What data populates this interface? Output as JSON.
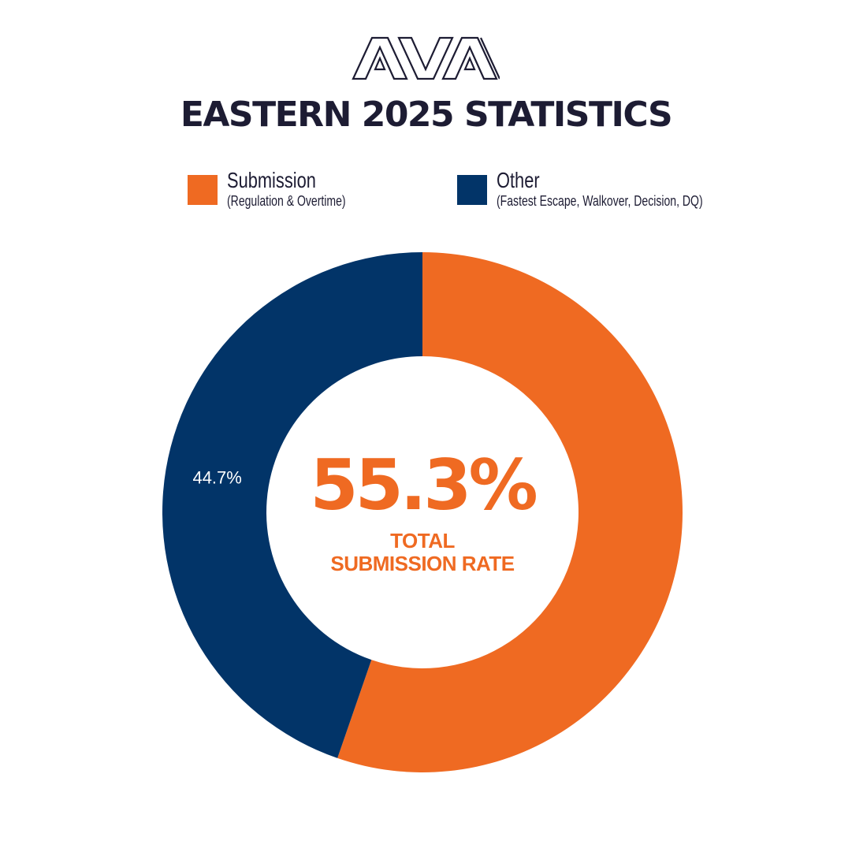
{
  "logo": {
    "text": "AVA",
    "icon": "ava-logo-icon"
  },
  "title": "EASTERN 2025 STATISTICS",
  "legend": [
    {
      "name": "Submission",
      "sub": "(Regulation & Overtime)",
      "color": "#ef6a22"
    },
    {
      "name": "Other",
      "sub": "(Fastest Escape, Walkover, Decision, DQ)",
      "color": "#023468"
    }
  ],
  "center": {
    "value": "55.3%",
    "label_line1": "TOTAL",
    "label_line2": "SUBMISSION RATE"
  },
  "chart_data": {
    "type": "pie",
    "categories": [
      "Submission",
      "Other"
    ],
    "values": [
      55.3,
      44.7
    ],
    "colors": [
      "#ef6a22",
      "#023468"
    ],
    "data_labels": [
      "",
      "44.7%"
    ],
    "donut": true,
    "title": "EASTERN 2025 STATISTICS",
    "legend": "top"
  }
}
